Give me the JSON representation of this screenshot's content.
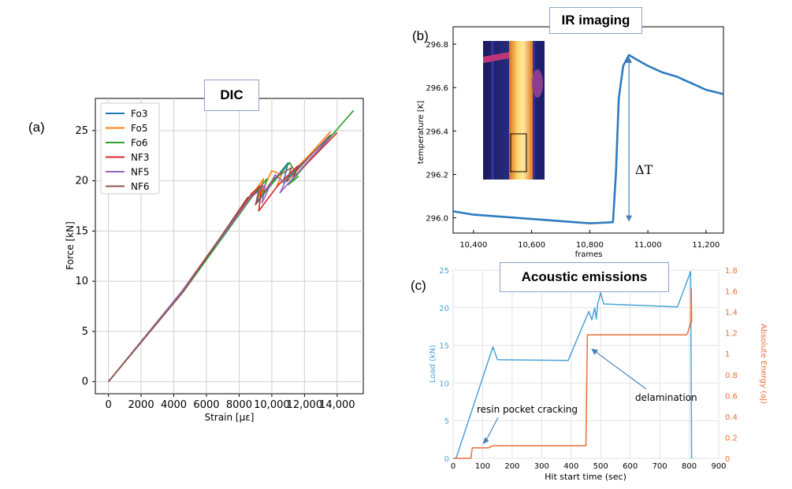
{
  "panel_labels": {
    "a": "(a)",
    "b": "(b)",
    "c": "(c)"
  },
  "colors": {
    "Fo3": "#1f77b4",
    "Fo5": "#ff7f0e",
    "Fo6": "#2ca02c",
    "NF3": "#d62728",
    "NF5": "#9467bd",
    "NF6": "#8c564b",
    "ir_line": "#2e7bbf",
    "ae_load": "#4aa3d8",
    "ae_energy": "#e8703a",
    "arrow": "#4a7fb5"
  },
  "chart_data": [
    {
      "type": "line",
      "title": "DIC",
      "xlabel": "Strain [με]",
      "ylabel": "Force [kN]",
      "xlim": [
        -800,
        15600
      ],
      "ylim": [
        -1.2,
        28.2
      ],
      "x_ticks": [
        0,
        2000,
        4000,
        6000,
        8000,
        10000,
        12000,
        14000
      ],
      "x_tick_labels": [
        "0",
        "2000",
        "4000",
        "6000",
        "8000",
        "10,000",
        "12,000",
        "14,000"
      ],
      "y_ticks": [
        0,
        5,
        10,
        15,
        20,
        25
      ],
      "y_tick_labels": [
        "0",
        "5",
        "10",
        "15",
        "20",
        "25"
      ],
      "grid": true,
      "legend": "top-left",
      "series": [
        {
          "name": "Fo3",
          "x": [
            0,
            4500,
            8500,
            9300,
            9100,
            10500,
            11000,
            10700,
            12000,
            13900
          ],
          "y": [
            0,
            9,
            18,
            19.5,
            17.8,
            20.8,
            21.8,
            19.8,
            22,
            24.9
          ]
        },
        {
          "name": "Fo5",
          "x": [
            0,
            4500,
            8600,
            9500,
            9200,
            10000,
            10600,
            10300,
            12200,
            13600
          ],
          "y": [
            0,
            9,
            18.2,
            20.2,
            18.3,
            21,
            20.6,
            19.4,
            22.4,
            24.9
          ]
        },
        {
          "name": "Fo6",
          "x": [
            0,
            4600,
            8700,
            9700,
            9400,
            11100,
            11600,
            11000,
            13500,
            15000
          ],
          "y": [
            0,
            9,
            18.2,
            20.2,
            18.5,
            21.8,
            20.4,
            19.6,
            24.2,
            27
          ]
        },
        {
          "name": "NF3",
          "x": [
            0,
            4500,
            8800,
            9400,
            9200,
            10400,
            11600,
            11300,
            12200,
            14000
          ],
          "y": [
            0,
            9,
            18.8,
            19.6,
            17,
            19.6,
            21.5,
            20.3,
            21.8,
            24.8
          ]
        },
        {
          "name": "NF5",
          "x": [
            0,
            4500,
            8700,
            9600,
            9400,
            10200,
            10800,
            10500,
            12400,
            13500
          ],
          "y": [
            0,
            9,
            18.3,
            19.6,
            17.8,
            20.6,
            19.8,
            18.8,
            22.3,
            24.2
          ]
        },
        {
          "name": "NF6",
          "x": [
            0,
            4600,
            8500,
            9200,
            9000,
            10100,
            11200,
            10900,
            12300,
            13600
          ],
          "y": [
            0,
            9,
            18.3,
            19,
            17.6,
            20.2,
            21.3,
            19.9,
            22.4,
            24.6
          ]
        }
      ]
    },
    {
      "type": "line",
      "title": "IR imaging",
      "xlabel": "frames",
      "ylabel": "temperature [K]",
      "xlim": [
        10330,
        11260
      ],
      "ylim": [
        295.93,
        296.88
      ],
      "x_ticks": [
        10400,
        10600,
        10800,
        11000,
        11200
      ],
      "x_tick_labels": [
        "10,400",
        "10,600",
        "10,800",
        "11,000",
        "11,200"
      ],
      "y_ticks": [
        296.0,
        296.2,
        296.4,
        296.6,
        296.8
      ],
      "y_tick_labels": [
        "296.0",
        "296.2",
        "296.4",
        "296.6",
        "296.8"
      ],
      "annotation": "ΔT",
      "series": [
        {
          "name": "temperature",
          "x": [
            10330,
            10400,
            10500,
            10600,
            10700,
            10800,
            10880,
            10890,
            10900,
            10915,
            10935,
            10960,
            11000,
            11050,
            11100,
            11150,
            11200,
            11260
          ],
          "y": [
            296.03,
            296.015,
            296.005,
            295.995,
            295.985,
            295.975,
            295.98,
            296.2,
            296.55,
            296.7,
            296.75,
            296.73,
            296.7,
            296.67,
            296.65,
            296.62,
            296.59,
            296.57
          ]
        }
      ]
    },
    {
      "type": "line",
      "title": "Acoustic emissions",
      "xlabel": "Hit start time (sec)",
      "ylabel": "Load (kN)",
      "ylabel_right": "Absolute Energy (aJ)",
      "xlim": [
        0,
        900
      ],
      "ylim": [
        0,
        25
      ],
      "ylim_right": [
        0,
        1.8
      ],
      "x_ticks": [
        0,
        100,
        200,
        300,
        400,
        500,
        600,
        700,
        800,
        900
      ],
      "x_tick_labels": [
        "0",
        "100",
        "200",
        "300",
        "400",
        "500",
        "600",
        "700",
        "800",
        "900"
      ],
      "y_ticks": [
        0,
        5,
        10,
        15,
        20,
        25
      ],
      "y_tick_labels": [
        "0",
        "5",
        "10",
        "15",
        "20",
        "25"
      ],
      "y_ticks_right": [
        0,
        0.2,
        0.4,
        0.6,
        0.8,
        1,
        1.2,
        1.4,
        1.6,
        1.8
      ],
      "y_tick_labels_right": [
        "0",
        "0.2",
        "0.4",
        "0.6",
        "0.8",
        "1",
        "1.2",
        "1.4",
        "1.6",
        "1.8"
      ],
      "annotations": [
        "resin pocket cracking",
        "delamination"
      ],
      "series": [
        {
          "name": "Load",
          "axis": "left",
          "x": [
            0,
            10,
            135,
            150,
            390,
            460,
            470,
            480,
            485,
            490,
            500,
            510,
            760,
            805,
            808,
            810
          ],
          "y": [
            0,
            0,
            14.8,
            13.1,
            13,
            19.5,
            18.4,
            20,
            18.5,
            20.5,
            22,
            20.5,
            20.1,
            24.8,
            0,
            0
          ]
        },
        {
          "name": "Absolute Energy",
          "axis": "right",
          "x": [
            0,
            60,
            65,
            120,
            135,
            450,
            455,
            790,
            795,
            805,
            807,
            808,
            808.5,
            810
          ],
          "y": [
            0,
            0,
            0.1,
            0.1,
            0.12,
            0.12,
            1.18,
            1.18,
            1.2,
            1.3,
            1.62,
            1.3,
            1.3,
            1.3
          ]
        }
      ]
    }
  ]
}
